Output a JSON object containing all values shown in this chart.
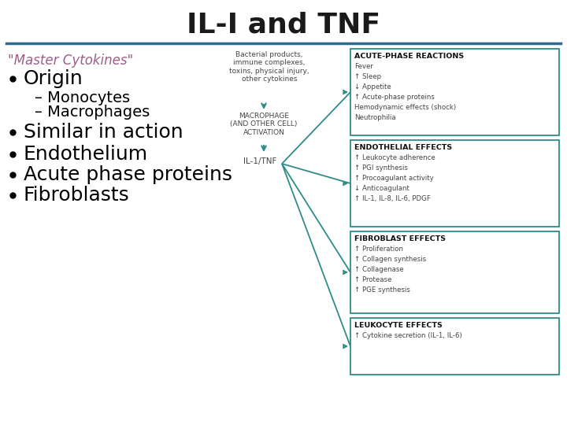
{
  "title": "IL-I and TNF",
  "title_color": "#1a1a1a",
  "title_fontsize": 26,
  "title_fontweight": "bold",
  "separator_color": "#2e6b8a",
  "master_cytokines": "\"Master Cytokines\"",
  "master_color": "#9b5e8a",
  "master_fontsize": 12,
  "bullet_items": [
    {
      "level": 0,
      "text": "Origin"
    },
    {
      "level": 1,
      "text": "– Monocytes"
    },
    {
      "level": 1,
      "text": "– Macrophages"
    },
    {
      "level": 0,
      "text": "Similar in action"
    },
    {
      "level": 0,
      "text": "Endothelium"
    },
    {
      "level": 0,
      "text": "Acute phase proteins"
    },
    {
      "level": 0,
      "text": "Fibroblasts"
    }
  ],
  "diagram": {
    "teal": "#2e8b8a",
    "box_border": "#2e8b8a",
    "trigger_text": "Bacterial products,\nimmune complexes,\ntoxins, physical injury,\nother cytokines",
    "macrophage_text": "MACROPHAGE\n(AND OTHER CELL)\nACTIVATION",
    "il1tnf_text": "IL-1/TNF",
    "boxes": [
      {
        "title": "ACUTE-PHASE REACTIONS",
        "lines": [
          "Fever",
          "↑ Sleep",
          "↓ Appetite",
          "↑ Acute-phase proteins",
          "Hemodynamic effects (shock)",
          "Neutrophilia"
        ]
      },
      {
        "title": "ENDOTHELIAL EFFECTS",
        "lines": [
          "↑ Leukocyte adherence",
          "↑ PGI synthesis",
          "↑ Procoagulant activity",
          "↓ Anticoagulant",
          "↑ IL-1, IL-8, IL-6, PDGF"
        ]
      },
      {
        "title": "FIBROBLAST EFFECTS",
        "lines": [
          "↑ Proliferation",
          "↑ Collagen synthesis",
          "↑ Collagenase",
          "↑ Protease",
          "↑ PGE synthesis"
        ]
      },
      {
        "title": "LEUKOCYTE EFFECTS",
        "lines": [
          "↑ Cytokine secretion (IL-1, IL-6)"
        ]
      }
    ]
  }
}
